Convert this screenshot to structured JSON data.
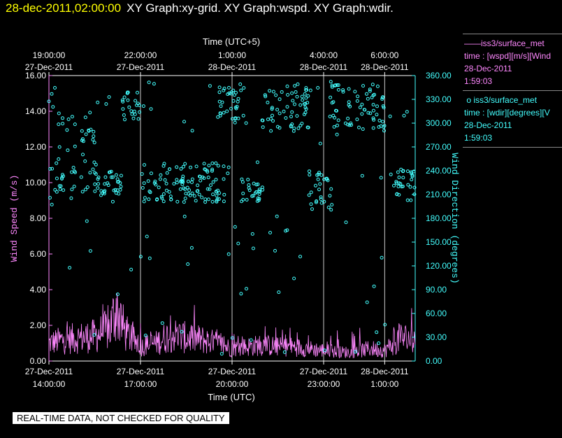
{
  "header": {
    "timestamp": "28-dec-2011,02:00:00",
    "graphs": "XY Graph:xy-grid.  XY Graph:wspd.  XY Graph:wdir."
  },
  "legend": {
    "wspd": {
      "name": "iss3/surface_met",
      "desc": "time : [wspd][m/s][Wind",
      "date": "28-Dec-2011",
      "time": "1:59:03",
      "color": "#ff88ff"
    },
    "wdir": {
      "name": "iss3/surface_met",
      "desc": "time : [wdir][degrees][V",
      "date": "28-Dec-2011",
      "time": "1:59:03",
      "color": "#44ffff"
    }
  },
  "qc_notice": "REAL-TIME DATA, NOT CHECKED FOR QUALITY",
  "chart_data": {
    "type": "scatter",
    "top_axis": {
      "label": "Time (UTC+5)",
      "ticks": [
        {
          "hour": 0,
          "time": "19:00:00",
          "date": "27-Dec-2011"
        },
        {
          "hour": 3,
          "time": "22:00:00",
          "date": "27-Dec-2011"
        },
        {
          "hour": 6,
          "time": "1:00:00",
          "date": "28-Dec-2011"
        },
        {
          "hour": 9,
          "time": "4:00:00",
          "date": "28-Dec-2011"
        },
        {
          "hour": 11,
          "time": "6:00:00",
          "date": "28-Dec-2011"
        }
      ]
    },
    "bottom_axis": {
      "label": "Time (UTC)",
      "range": [
        "2011-12-27 14:00",
        "2011-12-28 02:00"
      ],
      "ticks": [
        {
          "hour": 0,
          "date": "27-Dec-2011",
          "time": "14:00:00"
        },
        {
          "hour": 3,
          "date": "27-Dec-2011",
          "time": "17:00:00"
        },
        {
          "hour": 6,
          "date": "27-Dec-2011",
          "time": "20:00:00"
        },
        {
          "hour": 9,
          "date": "27-Dec-2011",
          "time": "23:00:00"
        },
        {
          "hour": 11,
          "date": "28-Dec-2011",
          "time": "1:00:00"
        }
      ]
    },
    "left_axis": {
      "label": "Wind Speed (m/s)",
      "ylim": [
        0,
        16
      ],
      "ticks": [
        "0.00",
        "2.00",
        "4.00",
        "6.00",
        "8.00",
        "10.00",
        "12.00",
        "14.00",
        "16.00"
      ]
    },
    "right_axis": {
      "label": "Wind Direction (degrees)",
      "ylim": [
        0,
        360
      ],
      "ticks": [
        "0.00",
        "30.00",
        "60.00",
        "90.00",
        "120.00",
        "150.00",
        "180.00",
        "210.00",
        "240.00",
        "270.00",
        "300.00",
        "330.00",
        "360.00"
      ]
    },
    "grid": "vertical lines at bottom-axis ticks",
    "series": [
      {
        "name": "iss3/surface_met wspd",
        "type": "line",
        "color": "#ff88ff",
        "x_hours": [
          0,
          0.5,
          1,
          1.5,
          2,
          2.2,
          2.5,
          3,
          3.5,
          4,
          4.5,
          5,
          5.5,
          6,
          6.5,
          7,
          7.5,
          8,
          8.5,
          9,
          9.5,
          10,
          10.5,
          11,
          11.5,
          12
        ],
        "values": [
          1.0,
          1.2,
          1.3,
          1.4,
          1.8,
          3.0,
          1.6,
          0.8,
          1.0,
          1.5,
          1.3,
          1.2,
          1.0,
          0.7,
          0.8,
          0.9,
          0.8,
          0.8,
          0.7,
          0.6,
          0.5,
          0.5,
          0.7,
          0.6,
          1.3,
          1.2
        ]
      },
      {
        "name": "iss3/surface_met wdir",
        "type": "scatter",
        "color": "#44ffff",
        "clusters": [
          {
            "hour_range": [
              0,
              0.3
            ],
            "deg_range": [
              180,
              340
            ]
          },
          {
            "hour_range": [
              0.3,
              1.5
            ],
            "deg_range": [
              200,
              320
            ]
          },
          {
            "hour_range": [
              1.5,
              2.4
            ],
            "deg_range": [
              210,
              240
            ]
          },
          {
            "hour_range": [
              2.4,
              3.0
            ],
            "deg_range": [
              300,
              340
            ]
          },
          {
            "hour_range": [
              3.0,
              5.9
            ],
            "deg_range": [
              200,
              250
            ]
          },
          {
            "hour_range": [
              5.5,
              6.5
            ],
            "deg_range": [
              300,
              350
            ]
          },
          {
            "hour_range": [
              6.3,
              7.0
            ],
            "deg_range": [
              200,
              230
            ]
          },
          {
            "hour_range": [
              7.0,
              8.5
            ],
            "deg_range": [
              290,
              350
            ]
          },
          {
            "hour_range": [
              8.5,
              9.3
            ],
            "deg_range": [
              190,
              240
            ]
          },
          {
            "hour_range": [
              9.2,
              11.0
            ],
            "deg_range": [
              290,
              350
            ]
          },
          {
            "hour_range": [
              11.2,
              12.0
            ],
            "deg_range": [
              200,
              240
            ]
          }
        ]
      }
    ]
  }
}
